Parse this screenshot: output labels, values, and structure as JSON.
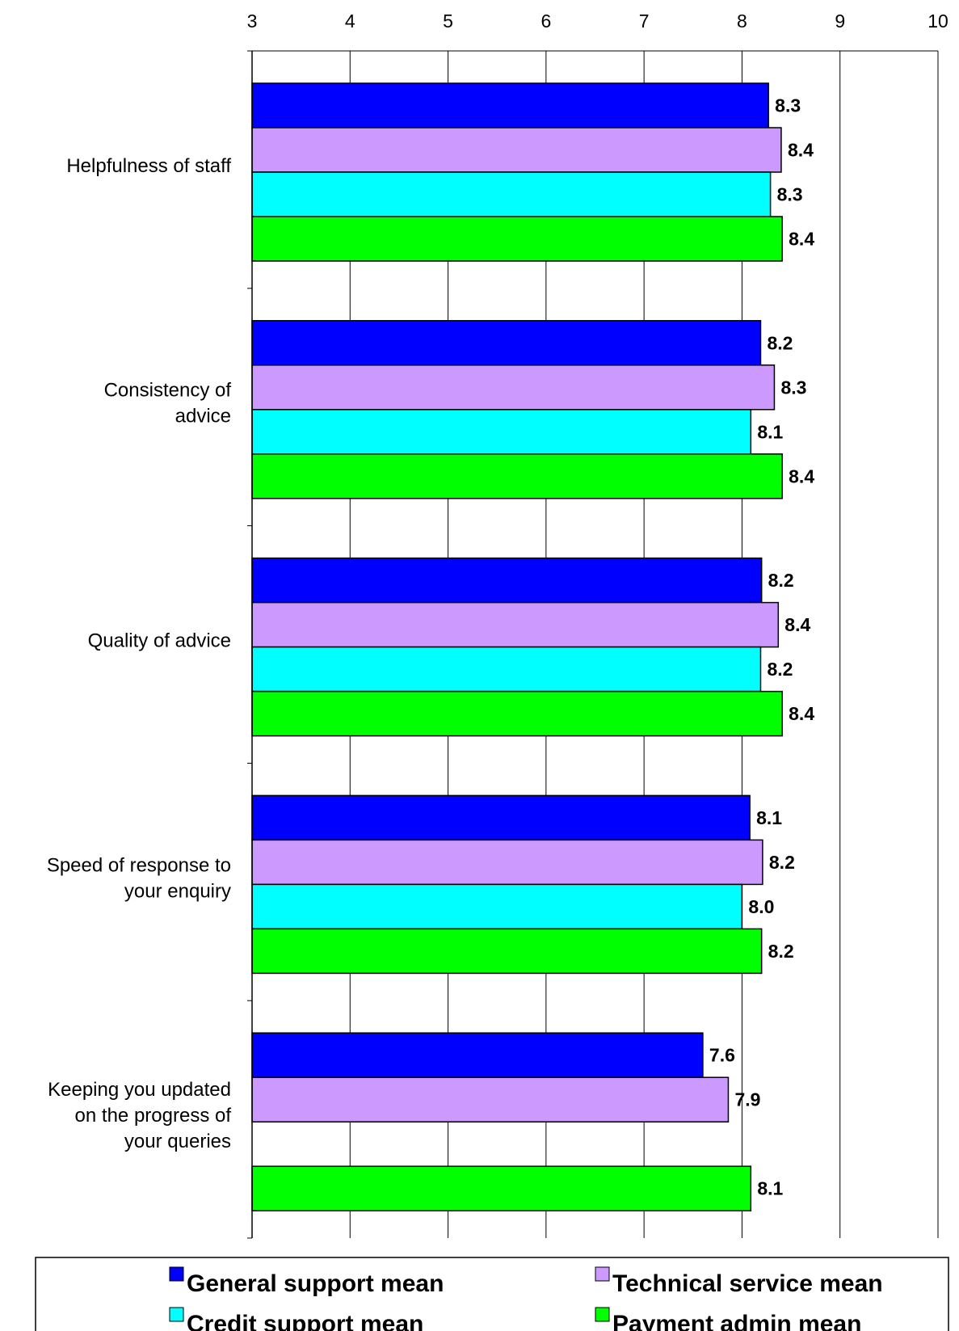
{
  "chart_data": {
    "type": "bar",
    "orientation": "horizontal",
    "x_ticks": [
      "3",
      "4",
      "5",
      "6",
      "7",
      "8",
      "9",
      "10"
    ],
    "xlim": [
      3,
      10
    ],
    "x_axis_position": "top",
    "grid": true,
    "legend_position": "bottom",
    "categories": [
      "Helpfulness of staff",
      "Consistency of advice",
      "Quality of advice",
      "Speed of response to your enquiry",
      "Keeping you updated on the progress of your queries"
    ],
    "category_label_lines": [
      [
        "Helpfulness of staff"
      ],
      [
        "Consistency of",
        "advice"
      ],
      [
        "Quality of advice"
      ],
      [
        "Speed of response to",
        "your enquiry"
      ],
      [
        "Keeping you updated",
        "on the progress of",
        "your queries"
      ]
    ],
    "series": [
      {
        "name": "General support mean",
        "color": "#0000FF",
        "values": [
          8.27,
          8.19,
          8.2,
          8.08,
          7.6
        ],
        "labels": [
          "8.3",
          "8.2",
          "8.2",
          "8.1",
          "7.6"
        ]
      },
      {
        "name": "Technical service mean",
        "color": "#CC99FF",
        "values": [
          8.4,
          8.33,
          8.37,
          8.21,
          7.86
        ],
        "labels": [
          "8.4",
          "8.3",
          "8.4",
          "8.2",
          "7.9"
        ]
      },
      {
        "name": "Credit support mean",
        "color": "#00FFFF",
        "values": [
          8.29,
          8.09,
          8.19,
          8.0,
          null
        ],
        "labels": [
          "8.3",
          "8.1",
          "8.2",
          "8.0",
          null
        ]
      },
      {
        "name": "Payment admin mean",
        "color": "#00FF00",
        "values": [
          8.41,
          8.41,
          8.41,
          8.2,
          8.09
        ],
        "labels": [
          "8.4",
          "8.4",
          "8.4",
          "8.2",
          "8.1"
        ]
      }
    ]
  }
}
